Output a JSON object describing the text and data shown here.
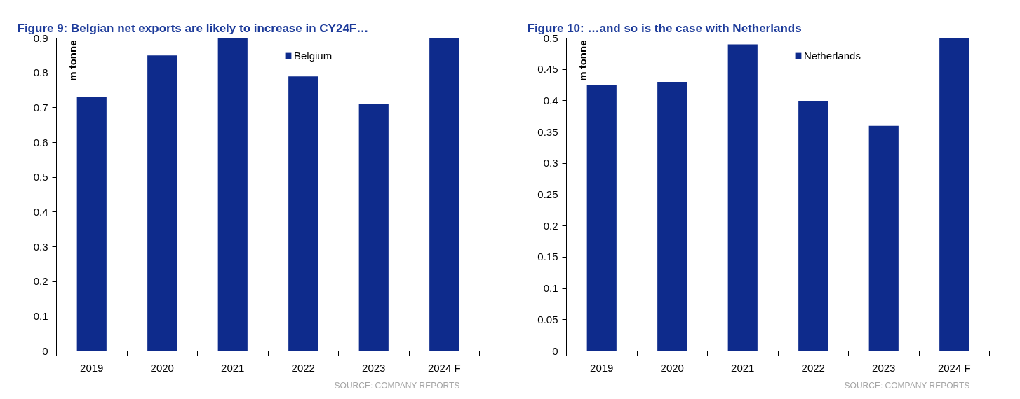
{
  "chart_data": [
    {
      "type": "bar",
      "title": "Figure 9: Belgian net exports are likely to increase in CY24F…",
      "ylabel": "m tonne",
      "categories": [
        "2019",
        "2020",
        "2021",
        "2022",
        "2023",
        "2024 F"
      ],
      "series": [
        {
          "name": "Belgium",
          "color": "#0e2b8c",
          "values": [
            0.73,
            0.85,
            0.9,
            0.79,
            0.71,
            0.9
          ]
        }
      ],
      "ylim": [
        0,
        0.9
      ],
      "yticks": [
        0,
        0.1,
        0.2,
        0.3,
        0.4,
        0.5,
        0.6,
        0.7,
        0.8,
        0.9
      ],
      "legend": "top",
      "annotations": [
        "SOURCE: COMPANY REPORTS"
      ]
    },
    {
      "type": "bar",
      "title": "Figure 10: …and so is the case with Netherlands",
      "ylabel": "m tonne",
      "categories": [
        "2019",
        "2020",
        "2021",
        "2022",
        "2023",
        "2024 F"
      ],
      "series": [
        {
          "name": "Netherlands",
          "color": "#0e2b8c",
          "values": [
            0.425,
            0.43,
            0.49,
            0.4,
            0.36,
            0.5
          ]
        }
      ],
      "ylim": [
        0,
        0.5
      ],
      "yticks": [
        0,
        0.05,
        0.1,
        0.15,
        0.2,
        0.25,
        0.3,
        0.35,
        0.4,
        0.45,
        0.5
      ],
      "legend": "top",
      "annotations": [
        "SOURCE: COMPANY REPORTS"
      ]
    }
  ]
}
